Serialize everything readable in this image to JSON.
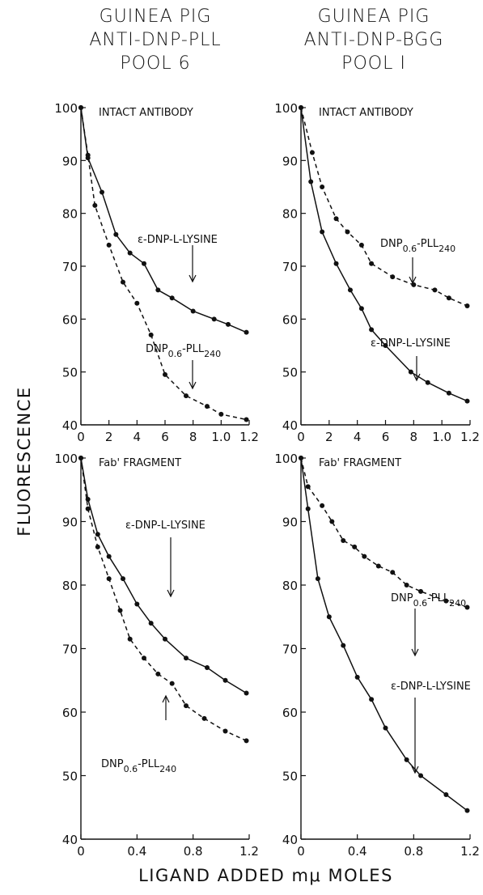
{
  "header": {
    "left": [
      "GUINEA PIG",
      "ANTI-DNP-PLL",
      "POOL 6"
    ],
    "right": [
      "GUINEA PIG",
      "ANTI-DNP-BGG",
      "POOL I"
    ]
  },
  "ylabel": "FLUORESCENCE",
  "xlabel": "LIGAND ADDED mμ MOLES",
  "chart_data": [
    {
      "type": "line",
      "title": "INTACT ANTIBODY",
      "xlim": [
        0,
        1.2
      ],
      "ylim": [
        40,
        100
      ],
      "xticks": [
        0,
        0.2,
        0.4,
        0.6,
        0.8,
        1.0,
        1.2
      ],
      "xtick_labels": [
        "0",
        "2",
        "4",
        "6",
        "8",
        "1.0",
        "1.2"
      ],
      "yticks": [
        40,
        50,
        60,
        70,
        80,
        90,
        100
      ],
      "series": [
        {
          "name": "ε-DNP-L-LYSINE",
          "style": "solid",
          "x": [
            0,
            0.05,
            0.15,
            0.25,
            0.35,
            0.45,
            0.55,
            0.65,
            0.8,
            0.95,
            1.05,
            1.18
          ],
          "y": [
            100,
            90.5,
            84,
            76,
            72.5,
            70.5,
            65.5,
            64,
            61.5,
            60,
            59,
            57.5
          ]
        },
        {
          "name": "DNP0.6-PLL240",
          "style": "dashed",
          "x": [
            0,
            0.05,
            0.1,
            0.2,
            0.3,
            0.4,
            0.5,
            0.6,
            0.75,
            0.9,
            1.0,
            1.18
          ],
          "y": [
            100,
            91,
            81.5,
            74,
            67,
            63,
            57,
            49.5,
            45.5,
            43.5,
            42,
            41
          ]
        }
      ],
      "annotations": [
        {
          "text": "ε-DNP-L-LYSINE",
          "series": "ε-DNP-L-LYSINE"
        },
        {
          "text": "DNP0.6-PLL240",
          "series": "DNP0.6-PLL240"
        }
      ]
    },
    {
      "type": "line",
      "title": "INTACT ANTIBODY",
      "xlim": [
        0,
        1.2
      ],
      "ylim": [
        40,
        100
      ],
      "xticks": [
        0,
        0.2,
        0.4,
        0.6,
        0.8,
        1.0,
        1.2
      ],
      "xtick_labels": [
        "0",
        "2",
        "4",
        "6",
        "8",
        "1.0",
        "1.2"
      ],
      "yticks": [
        40,
        50,
        60,
        70,
        80,
        90,
        100
      ],
      "series": [
        {
          "name": "DNP0.6-PLL240",
          "style": "dashed",
          "x": [
            0,
            0.08,
            0.15,
            0.25,
            0.33,
            0.43,
            0.5,
            0.65,
            0.8,
            0.95,
            1.05,
            1.18
          ],
          "y": [
            100,
            91.5,
            85,
            79,
            76.5,
            74,
            70.5,
            68,
            66.5,
            65.5,
            64,
            62.5
          ]
        },
        {
          "name": "ε-DNP-L-LYSINE",
          "style": "solid",
          "x": [
            0,
            0.07,
            0.15,
            0.25,
            0.35,
            0.43,
            0.5,
            0.6,
            0.78,
            0.9,
            1.05,
            1.18
          ],
          "y": [
            100,
            86,
            76.5,
            70.5,
            65.5,
            62,
            58,
            55,
            50,
            48,
            46,
            44.5
          ]
        }
      ],
      "annotations": [
        {
          "text": "DNP0.6-PLL240",
          "series": "DNP0.6-PLL240"
        },
        {
          "text": "ε-DNP-L-LYSINE",
          "series": "ε-DNP-L-LYSINE"
        }
      ]
    },
    {
      "type": "line",
      "title": "Fab' FRAGMENT",
      "xlim": [
        0,
        1.2
      ],
      "ylim": [
        40,
        100
      ],
      "xticks": [
        0,
        0.4,
        0.8,
        1.2
      ],
      "xtick_labels": [
        "0",
        "0.4",
        "0.8",
        "1.2"
      ],
      "yticks": [
        40,
        50,
        60,
        70,
        80,
        90,
        100
      ],
      "series": [
        {
          "name": "ε-DNP-L-LYSINE",
          "style": "solid",
          "x": [
            0,
            0.05,
            0.12,
            0.2,
            0.3,
            0.4,
            0.5,
            0.6,
            0.75,
            0.9,
            1.03,
            1.18
          ],
          "y": [
            100,
            93.5,
            88,
            84.5,
            81,
            77,
            74,
            71.5,
            68.5,
            67,
            65,
            63
          ]
        },
        {
          "name": "DNP0.6-PLL240",
          "style": "dashed",
          "x": [
            0,
            0.05,
            0.12,
            0.2,
            0.28,
            0.35,
            0.45,
            0.55,
            0.65,
            0.75,
            0.88,
            1.03,
            1.18
          ],
          "y": [
            100,
            92,
            86,
            81,
            76,
            71.5,
            68.5,
            66,
            64.5,
            61,
            59,
            57,
            55.5
          ]
        }
      ],
      "annotations": [
        {
          "text": "ε-DNP-L-LYSINE",
          "series": "ε-DNP-L-LYSINE"
        },
        {
          "text": "DNP0.6-PLL240",
          "series": "DNP0.6-PLL240"
        }
      ]
    },
    {
      "type": "line",
      "title": "Fab' FRAGMENT",
      "xlim": [
        0,
        1.2
      ],
      "ylim": [
        40,
        100
      ],
      "xticks": [
        0,
        0.4,
        0.8,
        1.2
      ],
      "xtick_labels": [
        "0",
        "0.4",
        "0.8",
        "1.2"
      ],
      "yticks": [
        40,
        50,
        60,
        70,
        80,
        90,
        100
      ],
      "series": [
        {
          "name": "DNP0.6-PLL240",
          "style": "dashed",
          "x": [
            0,
            0.05,
            0.15,
            0.22,
            0.3,
            0.38,
            0.45,
            0.55,
            0.65,
            0.75,
            0.85,
            1.03,
            1.18
          ],
          "y": [
            100,
            95.5,
            92.5,
            90,
            87,
            86,
            84.5,
            83,
            82,
            80,
            79,
            77.5,
            76.5
          ]
        },
        {
          "name": "ε-DNP-L-LYSINE",
          "style": "solid",
          "x": [
            0,
            0.05,
            0.12,
            0.2,
            0.3,
            0.4,
            0.5,
            0.6,
            0.75,
            0.85,
            1.03,
            1.18
          ],
          "y": [
            100,
            92,
            81,
            75,
            70.5,
            65.5,
            62,
            57.5,
            52.5,
            50,
            47,
            44.5
          ]
        }
      ],
      "annotations": [
        {
          "text": "DNP0.6-PLL240",
          "series": "DNP0.6-PLL240"
        },
        {
          "text": "ε-DNP-L-LYSINE",
          "series": "ε-DNP-L-LYSINE"
        }
      ]
    }
  ]
}
